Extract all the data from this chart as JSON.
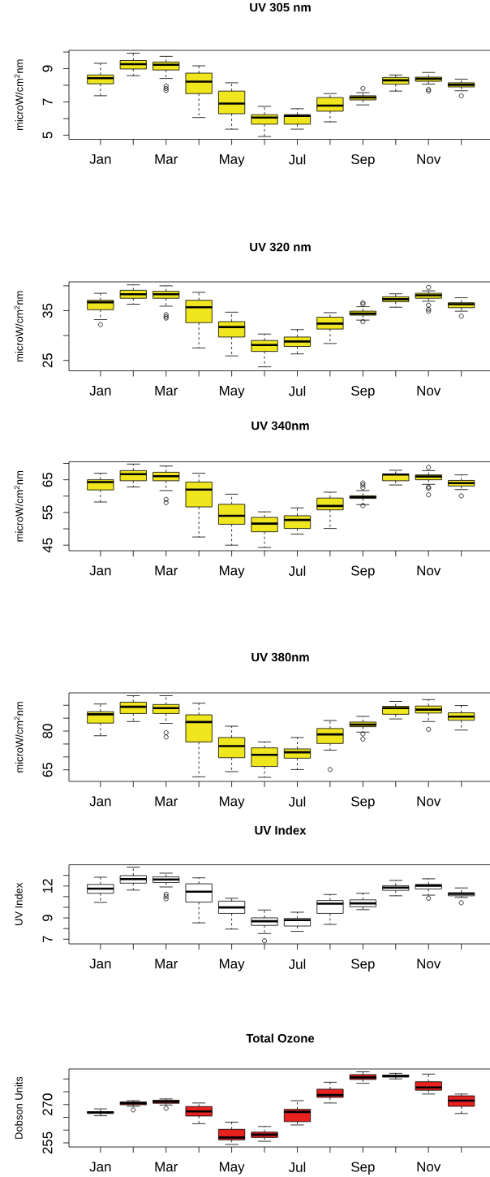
{
  "chart_data": [
    {
      "type": "box",
      "title": "UV 305 nm",
      "ylabel": "microW/cm$^{2}$nm",
      "categories": [
        "Jan",
        null,
        "Mar",
        null,
        "May",
        null,
        "Jul",
        null,
        "Sep",
        null,
        "Nov",
        null
      ],
      "color": "#f0e61e",
      "ylim": [
        4.75,
        10.1
      ],
      "yticks": [
        5,
        {
          "value": 6,
          "label": null
        },
        7,
        {
          "value": 8,
          "label": null
        },
        9,
        {
          "value": 10,
          "label": null
        }
      ],
      "boxes": [
        {
          "low": 7.37,
          "q1": 8.09,
          "median": 8.43,
          "q3": 8.62,
          "high": 9.32
        },
        {
          "low": 8.58,
          "q1": 8.98,
          "median": 9.27,
          "q3": 9.49,
          "high": 9.93
        },
        {
          "low": 8.41,
          "q1": 8.92,
          "median": 9.23,
          "q3": 9.4,
          "high": 9.74,
          "outliers": [
            7.96,
            7.81,
            7.69
          ]
        },
        {
          "low": 6.06,
          "q1": 7.5,
          "median": 8.22,
          "q3": 8.73,
          "high": 9.17
        },
        {
          "low": 5.36,
          "q1": 6.29,
          "median": 6.9,
          "q3": 7.65,
          "high": 8.15
        },
        {
          "low": 4.92,
          "q1": 5.66,
          "median": 6.06,
          "q3": 6.23,
          "high": 6.73
        },
        {
          "low": 5.36,
          "q1": 5.66,
          "median": 6.16,
          "q3": 6.23,
          "high": 6.59
        },
        {
          "low": 5.8,
          "q1": 6.44,
          "median": 6.78,
          "q3": 7.26,
          "high": 7.5
        },
        {
          "low": 6.82,
          "q1": 7.12,
          "median": 7.27,
          "q3": 7.37,
          "high": 7.56,
          "outliers": [
            7.81
          ]
        },
        {
          "low": 7.65,
          "q1": 8.07,
          "median": 8.3,
          "q3": 8.47,
          "high": 8.62
        },
        {
          "low": 8.07,
          "q1": 8.24,
          "median": 8.39,
          "q3": 8.49,
          "high": 8.77,
          "outliers": [
            7.75,
            7.65
          ]
        },
        {
          "low": 7.67,
          "q1": 7.9,
          "median": 8.03,
          "q3": 8.15,
          "high": 8.37,
          "outliers": [
            7.37
          ]
        }
      ]
    },
    {
      "type": "box",
      "title": "UV 320 nm",
      "ylabel": "microW/cm$^{2}$nm",
      "categories": [
        "Jan",
        null,
        "Mar",
        null,
        "May",
        null,
        "Jul",
        null,
        "Sep",
        null,
        "Nov",
        null
      ],
      "color": "#f0e61e",
      "ylim": [
        22.9,
        40.8
      ],
      "yticks": [
        25,
        {
          "value": 30,
          "label": null
        },
        35,
        {
          "value": 40,
          "label": null
        }
      ],
      "boxes": [
        {
          "low": 33.2,
          "q1": 35.2,
          "median": 36.7,
          "q3": 37.1,
          "high": 38.5,
          "outliers": [
            32.2
          ]
        },
        {
          "low": 36.3,
          "q1": 37.5,
          "median": 38.3,
          "q3": 39.1,
          "high": 40.2
        },
        {
          "low": 35.9,
          "q1": 37.5,
          "median": 38.3,
          "q3": 38.9,
          "high": 40.0,
          "outliers": [
            34.2,
            33.8,
            33.5
          ]
        },
        {
          "low": 27.5,
          "q1": 32.6,
          "median": 35.7,
          "q3": 37.1,
          "high": 38.7
        },
        {
          "low": 25.9,
          "q1": 29.7,
          "median": 31.7,
          "q3": 32.8,
          "high": 34.7
        },
        {
          "low": 23.7,
          "q1": 26.8,
          "median": 28.1,
          "q3": 29.0,
          "high": 30.3
        },
        {
          "low": 26.3,
          "q1": 27.8,
          "median": 28.8,
          "q3": 29.7,
          "high": 31.2
        },
        {
          "low": 28.4,
          "q1": 31.3,
          "median": 32.4,
          "q3": 33.7,
          "high": 34.6
        },
        {
          "low": 33.1,
          "q1": 34.1,
          "median": 34.4,
          "q3": 34.9,
          "high": 35.8,
          "outliers": [
            36.6,
            36.3,
            32.8
          ]
        },
        {
          "low": 35.7,
          "q1": 36.8,
          "median": 37.3,
          "q3": 37.8,
          "high": 38.4
        },
        {
          "low": 36.9,
          "q1": 37.5,
          "median": 38.1,
          "q3": 38.5,
          "high": 39.0,
          "outliers": [
            39.7,
            36.1,
            35.3,
            34.9
          ]
        },
        {
          "low": 34.9,
          "q1": 35.6,
          "median": 36.3,
          "q3": 36.6,
          "high": 37.6,
          "outliers": [
            33.9
          ]
        }
      ]
    },
    {
      "type": "box",
      "title": "UV 340nm",
      "ylabel": "microW/cm$^{2}$nm",
      "categories": [
        "Jan",
        null,
        "Mar",
        null,
        "May",
        null,
        "Jul",
        null,
        "Sep",
        null,
        "Nov",
        null
      ],
      "color": "#f0e61e",
      "ylim": [
        43.3,
        70.5
      ],
      "yticks": [
        45,
        {
          "value": 50,
          "label": null
        },
        55,
        {
          "value": 60,
          "label": null
        },
        65,
        {
          "value": 70,
          "label": null
        }
      ],
      "boxes": [
        {
          "low": 58.2,
          "q1": 61.9,
          "median": 64.3,
          "q3": 65.0,
          "high": 67.0
        },
        {
          "low": 62.8,
          "q1": 64.7,
          "median": 66.7,
          "q3": 67.8,
          "high": 69.8
        },
        {
          "low": 61.7,
          "q1": 64.7,
          "median": 66.1,
          "q3": 67.3,
          "high": 69.2,
          "outliers": [
            59.0,
            58.0
          ]
        },
        {
          "low": 47.5,
          "q1": 56.7,
          "median": 62.0,
          "q3": 64.3,
          "high": 67.0
        },
        {
          "low": 45.0,
          "q1": 51.4,
          "median": 54.0,
          "q3": 57.5,
          "high": 60.6
        },
        {
          "low": 44.3,
          "q1": 49.1,
          "median": 51.6,
          "q3": 53.5,
          "high": 55.2
        },
        {
          "low": 48.4,
          "q1": 50.1,
          "median": 52.7,
          "q3": 54.0,
          "high": 56.4
        },
        {
          "low": 50.1,
          "q1": 55.8,
          "median": 57.0,
          "q3": 59.4,
          "high": 61.2
        },
        {
          "low": 57.4,
          "q1": 59.3,
          "median": 59.7,
          "q3": 60.1,
          "high": 61.7,
          "outliers": [
            64.0,
            63.4,
            62.6,
            57.1
          ]
        },
        {
          "low": 63.4,
          "q1": 64.7,
          "median": 66.6,
          "q3": 66.8,
          "high": 67.9
        },
        {
          "low": 63.6,
          "q1": 65.0,
          "median": 66.0,
          "q3": 66.5,
          "high": 67.8,
          "outliers": [
            68.8,
            62.8,
            62.4,
            60.4
          ]
        },
        {
          "low": 62.0,
          "q1": 63.1,
          "median": 64.0,
          "q3": 64.8,
          "high": 66.5,
          "outliers": [
            60.1
          ]
        }
      ]
    },
    {
      "type": "box",
      "title": "UV 380nm",
      "ylabel": "microW/cm$^{2}$nm",
      "categories": [
        "Jan",
        null,
        "Mar",
        null,
        "May",
        null,
        "Jul",
        null,
        "Sep",
        null,
        "Nov",
        null
      ],
      "color": "#f0e61e",
      "ylim": [
        60.5,
        94.8
      ],
      "yticks": [
        65,
        {
          "value": 70,
          "label": null
        },
        {
          "value": 75,
          "label": null
        },
        80,
        {
          "value": 85,
          "label": null
        },
        {
          "value": 90,
          "label": null
        }
      ],
      "boxes": [
        {
          "low": 78.2,
          "q1": 83.1,
          "median": 86.5,
          "q3": 87.5,
          "high": 90.5
        },
        {
          "low": 83.7,
          "q1": 86.8,
          "median": 89.4,
          "q3": 91.2,
          "high": 93.7
        },
        {
          "low": 83.0,
          "q1": 86.8,
          "median": 88.9,
          "q3": 90.3,
          "high": 93.7,
          "outliers": [
            79.4,
            77.7
          ]
        },
        {
          "low": 62.3,
          "q1": 75.8,
          "median": 83.5,
          "q3": 86.3,
          "high": 90.8
        },
        {
          "low": 64.3,
          "q1": 69.7,
          "median": 74.2,
          "q3": 77.5,
          "high": 81.9
        },
        {
          "low": 62.1,
          "q1": 66.3,
          "median": 70.8,
          "q3": 73.5,
          "high": 75.8
        },
        {
          "low": 65.1,
          "q1": 69.5,
          "median": 71.8,
          "q3": 73.1,
          "high": 77.5
        },
        {
          "low": 72.6,
          "q1": 75.2,
          "median": 78.7,
          "q3": 81.0,
          "high": 84.1,
          "outliers": [
            65.1
          ]
        },
        {
          "low": 79.6,
          "q1": 81.7,
          "median": 82.5,
          "q3": 83.5,
          "high": 85.7,
          "outliers": [
            78.9,
            76.9
          ]
        },
        {
          "low": 84.7,
          "q1": 86.5,
          "median": 88.9,
          "q3": 89.6,
          "high": 91.5
        },
        {
          "low": 83.7,
          "q1": 87.0,
          "median": 88.3,
          "q3": 89.7,
          "high": 92.2,
          "outliers": [
            80.7
          ]
        },
        {
          "low": 80.4,
          "q1": 84.2,
          "median": 85.6,
          "q3": 87.1,
          "high": 89.9
        }
      ]
    },
    {
      "type": "box",
      "title": "UV Index",
      "ylabel": "UV Index",
      "categories": [
        "Jan",
        null,
        "Mar",
        null,
        "May",
        null,
        "Jul",
        null,
        "Sep",
        null,
        "Nov",
        null
      ],
      "color": "#ffffff",
      "ylim": [
        6.56,
        14.0
      ],
      "yticks": [
        7,
        {
          "value": 8,
          "label": null
        },
        9,
        {
          "value": 10,
          "label": null
        },
        {
          "value": 11,
          "label": null
        },
        12,
        {
          "value": 13,
          "label": null
        }
      ],
      "boxes": [
        {
          "low": 10.46,
          "q1": 11.32,
          "median": 11.76,
          "q3": 12.15,
          "high": 12.83
        },
        {
          "low": 11.62,
          "q1": 12.27,
          "median": 12.65,
          "q3": 12.98,
          "high": 13.78
        },
        {
          "low": 11.91,
          "q1": 12.33,
          "median": 12.62,
          "q3": 12.86,
          "high": 13.21,
          "outliers": [
            11.23,
            11.02,
            10.79
          ]
        },
        {
          "low": 8.54,
          "q1": 10.49,
          "median": 11.47,
          "q3": 12.21,
          "high": 12.77
        },
        {
          "low": 7.95,
          "q1": 9.43,
          "median": 9.99,
          "q3": 10.58,
          "high": 10.85
        },
        {
          "low": 7.53,
          "q1": 8.3,
          "median": 8.69,
          "q3": 9.01,
          "high": 9.75,
          "outliers": [
            6.85
          ]
        },
        {
          "low": 7.74,
          "q1": 8.24,
          "median": 8.8,
          "q3": 8.95,
          "high": 9.54
        },
        {
          "low": 8.39,
          "q1": 9.43,
          "median": 10.34,
          "q3": 10.64,
          "high": 11.2
        },
        {
          "low": 9.78,
          "q1": 10.05,
          "median": 10.37,
          "q3": 10.7,
          "high": 11.32
        },
        {
          "low": 11.08,
          "q1": 11.59,
          "median": 11.85,
          "q3": 12.03,
          "high": 12.53
        },
        {
          "low": 11.14,
          "q1": 11.73,
          "median": 12.03,
          "q3": 12.15,
          "high": 12.68,
          "outliers": [
            10.85
          ]
        },
        {
          "low": 10.93,
          "q1": 11.08,
          "median": 11.26,
          "q3": 11.38,
          "high": 11.82,
          "outliers": [
            10.43
          ]
        }
      ]
    },
    {
      "type": "box",
      "title": "Total Ozone",
      "ylabel": "Dobson Units",
      "categories": [
        "Jan",
        null,
        "Mar",
        null,
        "May",
        null,
        "Jul",
        null,
        "Sep",
        null,
        "Nov",
        null
      ],
      "color": "#e8201e",
      "ylim": [
        253.4,
        283.9
      ],
      "yticks": [
        255,
        {
          "value": 260,
          "label": null
        },
        {
          "value": 265,
          "label": null
        },
        270,
        {
          "value": 275,
          "label": null
        },
        {
          "value": 280,
          "label": null
        }
      ],
      "boxes": [
        {
          "low": 265.6,
          "q1": 266.5,
          "median": 266.9,
          "q3": 267.2,
          "high": 268.3
        },
        {
          "low": 269.3,
          "q1": 269.9,
          "median": 270.5,
          "q3": 271.0,
          "high": 271.5,
          "outliers": [
            267.9
          ]
        },
        {
          "low": 269.8,
          "q1": 270.5,
          "median": 271.1,
          "q3": 271.7,
          "high": 272.2,
          "outliers": [
            268.5
          ]
        },
        {
          "low": 262.5,
          "q1": 265.5,
          "median": 267.3,
          "q3": 269.2,
          "high": 270.6
        },
        {
          "low": 254.4,
          "q1": 256.2,
          "median": 257.1,
          "q3": 260.3,
          "high": 263.1
        },
        {
          "low": 255.6,
          "q1": 257.1,
          "median": 258.2,
          "q3": 259.2,
          "high": 261.4
        },
        {
          "low": 262.0,
          "q1": 263.3,
          "median": 267.1,
          "q3": 268.1,
          "high": 271.5
        },
        {
          "low": 270.6,
          "q1": 272.8,
          "median": 273.7,
          "q3": 276.0,
          "high": 278.7
        },
        {
          "low": 278.3,
          "q1": 279.8,
          "median": 280.6,
          "q3": 281.7,
          "high": 282.8
        },
        {
          "low": 280.0,
          "q1": 280.8,
          "median": 281.1,
          "q3": 281.5,
          "high": 282.2
        },
        {
          "low": 274.1,
          "q1": 275.6,
          "median": 276.7,
          "q3": 278.9,
          "high": 281.9
        },
        {
          "low": 266.5,
          "q1": 269.3,
          "median": 271.5,
          "q3": 273.4,
          "high": 274.1
        }
      ]
    }
  ]
}
